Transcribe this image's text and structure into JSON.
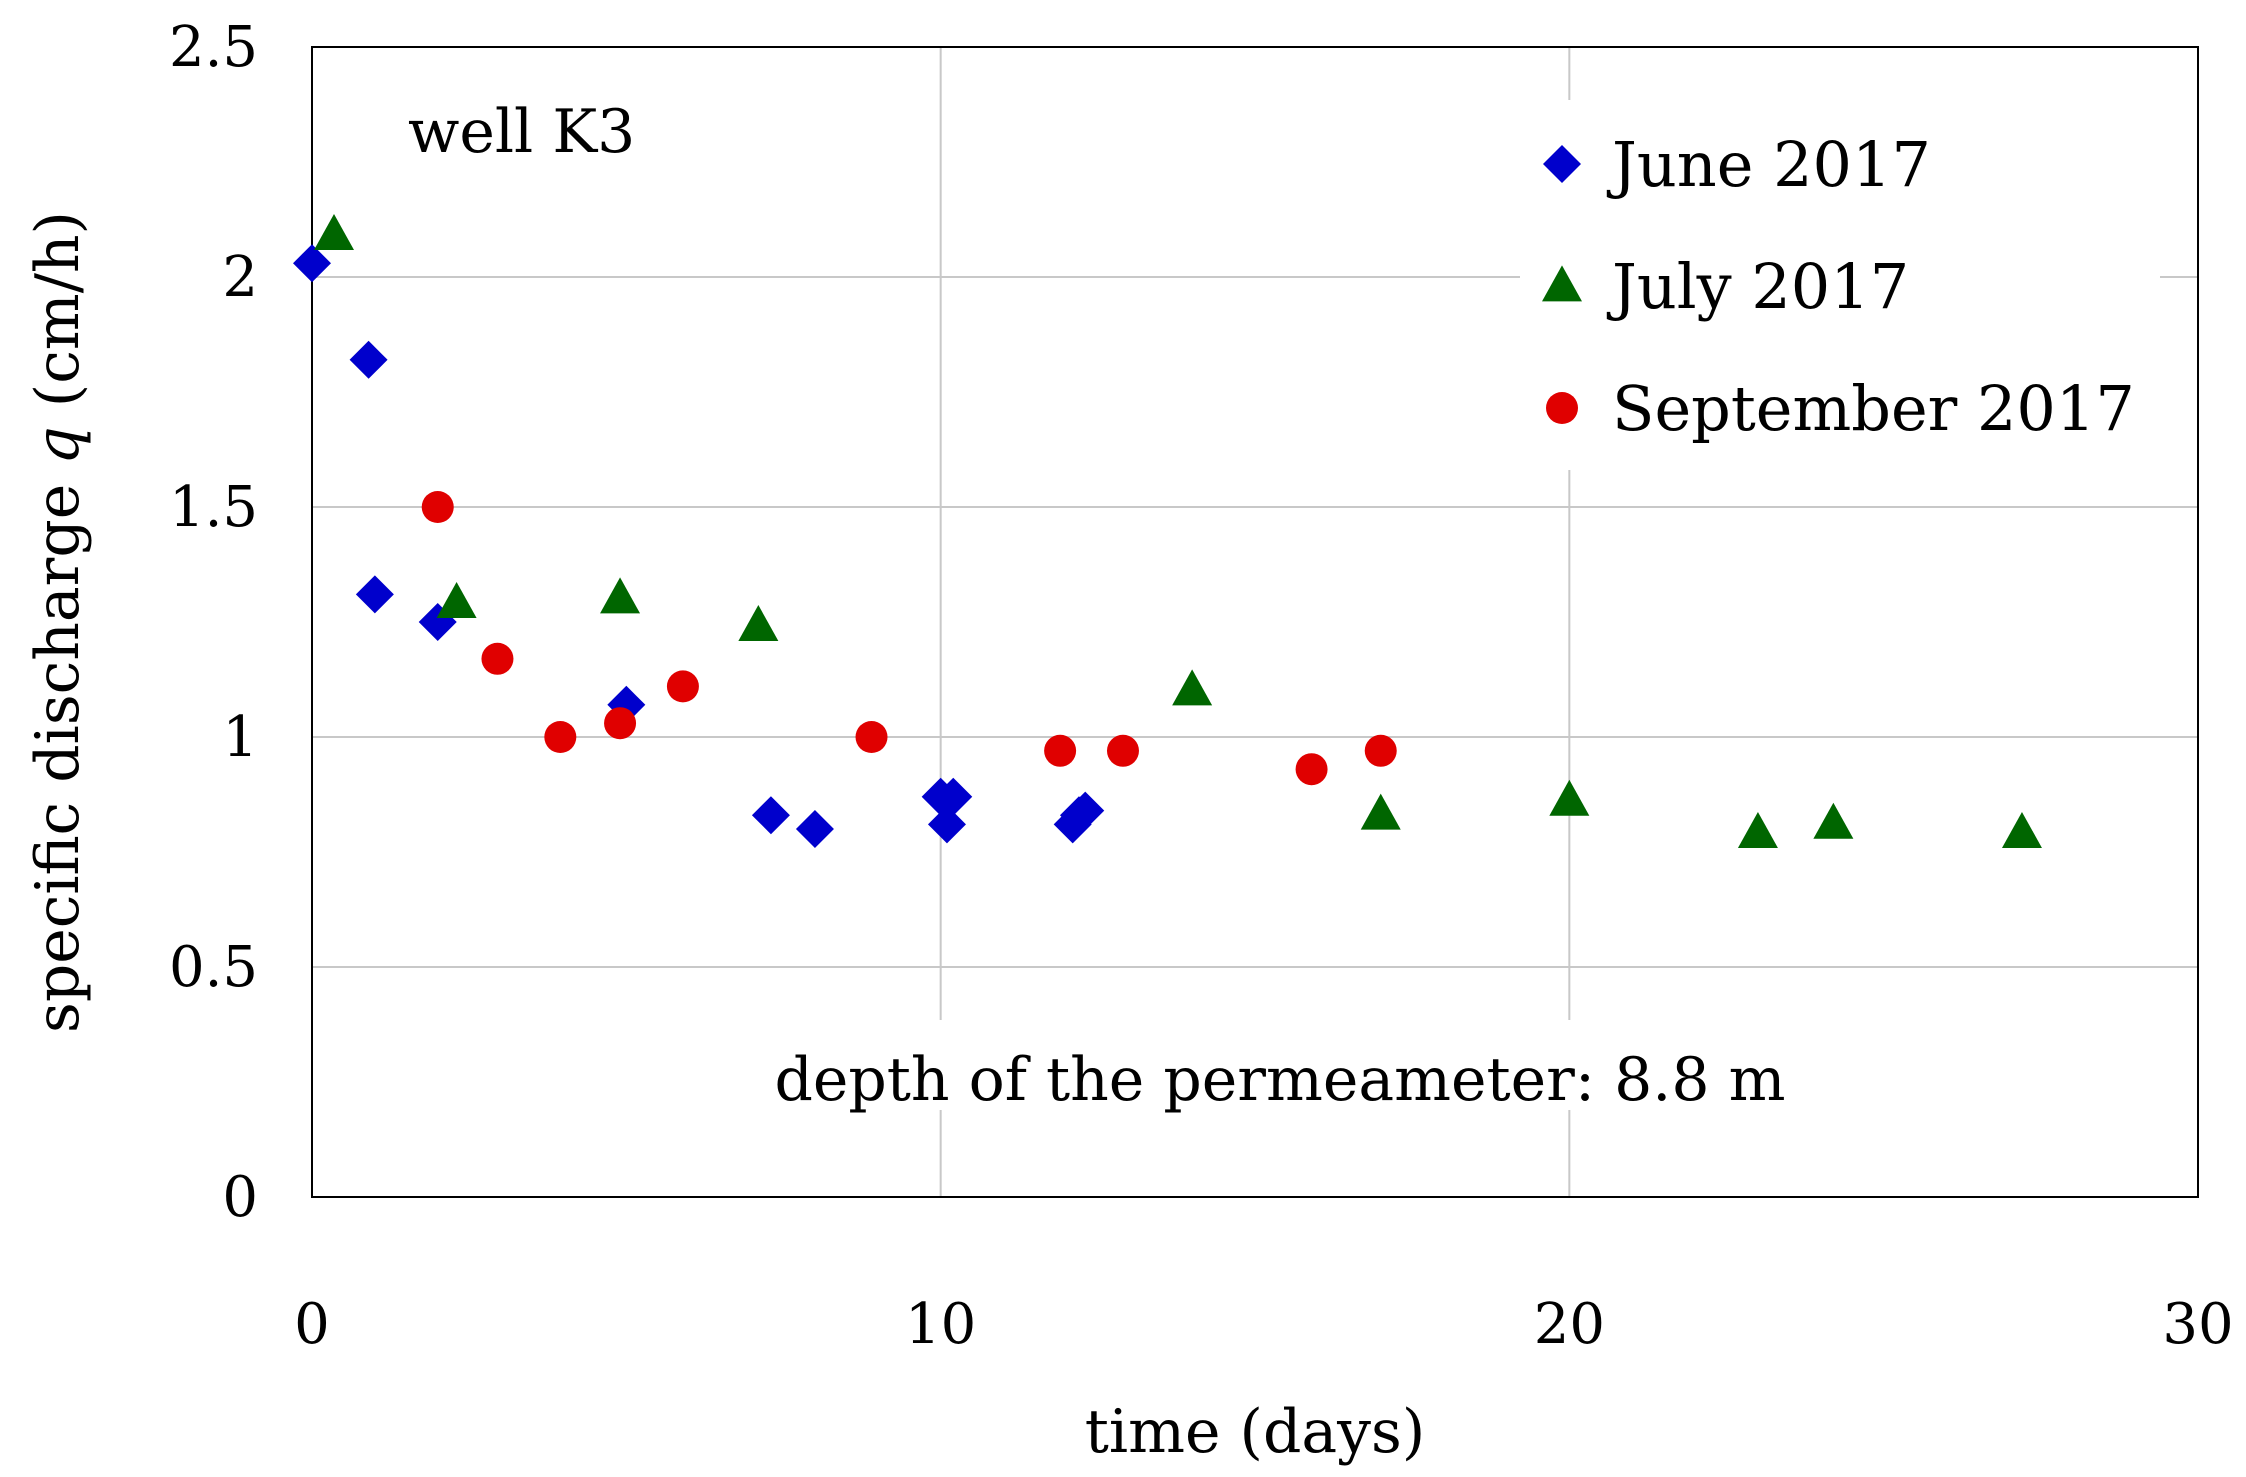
{
  "chart_data": {
    "type": "scatter",
    "title": "",
    "xlabel": "time (days)",
    "ylabel_prefix": "specific discharge ",
    "ylabel_var": "q",
    "ylabel_suffix": " (cm/h)",
    "xlim": [
      0,
      30
    ],
    "ylim": [
      0,
      2.5
    ],
    "xticks": [
      0,
      10,
      20,
      30
    ],
    "yticks": [
      0,
      0.5,
      1,
      1.5,
      2,
      2.5
    ],
    "xtick_labels": [
      "0",
      "10",
      "20",
      "30"
    ],
    "ytick_labels": [
      "0",
      "0.5",
      "1",
      "1.5",
      "2",
      "2.5"
    ],
    "grid": true,
    "legend_position": "top-right",
    "annotations": {
      "well": "well K3",
      "depth": "depth of the permeameter: 8.8 m"
    },
    "series": [
      {
        "name": "June 2017",
        "marker": "diamond",
        "color": "#0000cc",
        "points": [
          [
            0.0,
            2.03
          ],
          [
            0.9,
            1.82
          ],
          [
            1.0,
            1.31
          ],
          [
            2.0,
            1.25
          ],
          [
            5.0,
            1.07
          ],
          [
            7.3,
            0.83
          ],
          [
            8.0,
            0.8
          ],
          [
            10.0,
            0.87
          ],
          [
            10.1,
            0.81
          ],
          [
            10.2,
            0.87
          ],
          [
            12.1,
            0.81
          ],
          [
            12.2,
            0.83
          ],
          [
            12.3,
            0.84
          ]
        ]
      },
      {
        "name": "July 2017",
        "marker": "triangle",
        "color": "#006600",
        "points": [
          [
            0.35,
            2.09
          ],
          [
            2.3,
            1.29
          ],
          [
            4.9,
            1.3
          ],
          [
            7.1,
            1.24
          ],
          [
            14.0,
            1.1
          ],
          [
            17.0,
            0.83
          ],
          [
            20.0,
            0.86
          ],
          [
            23.0,
            0.79
          ],
          [
            24.2,
            0.81
          ],
          [
            27.2,
            0.79
          ]
        ]
      },
      {
        "name": "September 2017",
        "marker": "circle",
        "color": "#e00000",
        "points": [
          [
            2.0,
            1.5
          ],
          [
            2.95,
            1.17
          ],
          [
            3.95,
            1.0
          ],
          [
            4.9,
            1.03
          ],
          [
            5.9,
            1.11
          ],
          [
            8.9,
            1.0
          ],
          [
            11.9,
            0.97
          ],
          [
            12.9,
            0.97
          ],
          [
            15.9,
            0.93
          ],
          [
            17.0,
            0.97
          ]
        ]
      }
    ]
  }
}
